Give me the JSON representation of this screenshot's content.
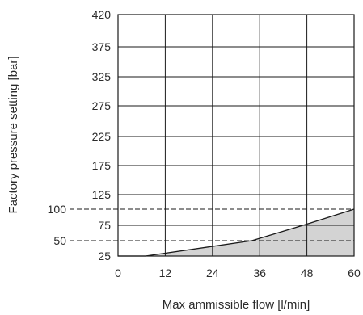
{
  "chart_data": {
    "type": "area",
    "title": "",
    "xlabel": "Max ammissible flow [l/min]",
    "ylabel": "Factory pressure setting [bar]",
    "x_ticks": [
      0,
      12,
      24,
      36,
      48,
      60
    ],
    "y_ticks": [
      25,
      75,
      125,
      175,
      225,
      275,
      325,
      375,
      420
    ],
    "x_range": [
      0,
      60
    ],
    "y_range": [
      25,
      420
    ],
    "grid": true,
    "series": [
      {
        "x": [
          0,
          7,
          34,
          47,
          60
        ],
        "y": [
          25,
          25,
          50,
          75,
          100
        ]
      }
    ],
    "reference_lines": [
      {
        "label": "100",
        "y": 100
      },
      {
        "label": "50",
        "y": 50
      }
    ],
    "colors": {
      "fill": "#d3d3d3",
      "line": "#1a1a1a"
    }
  }
}
